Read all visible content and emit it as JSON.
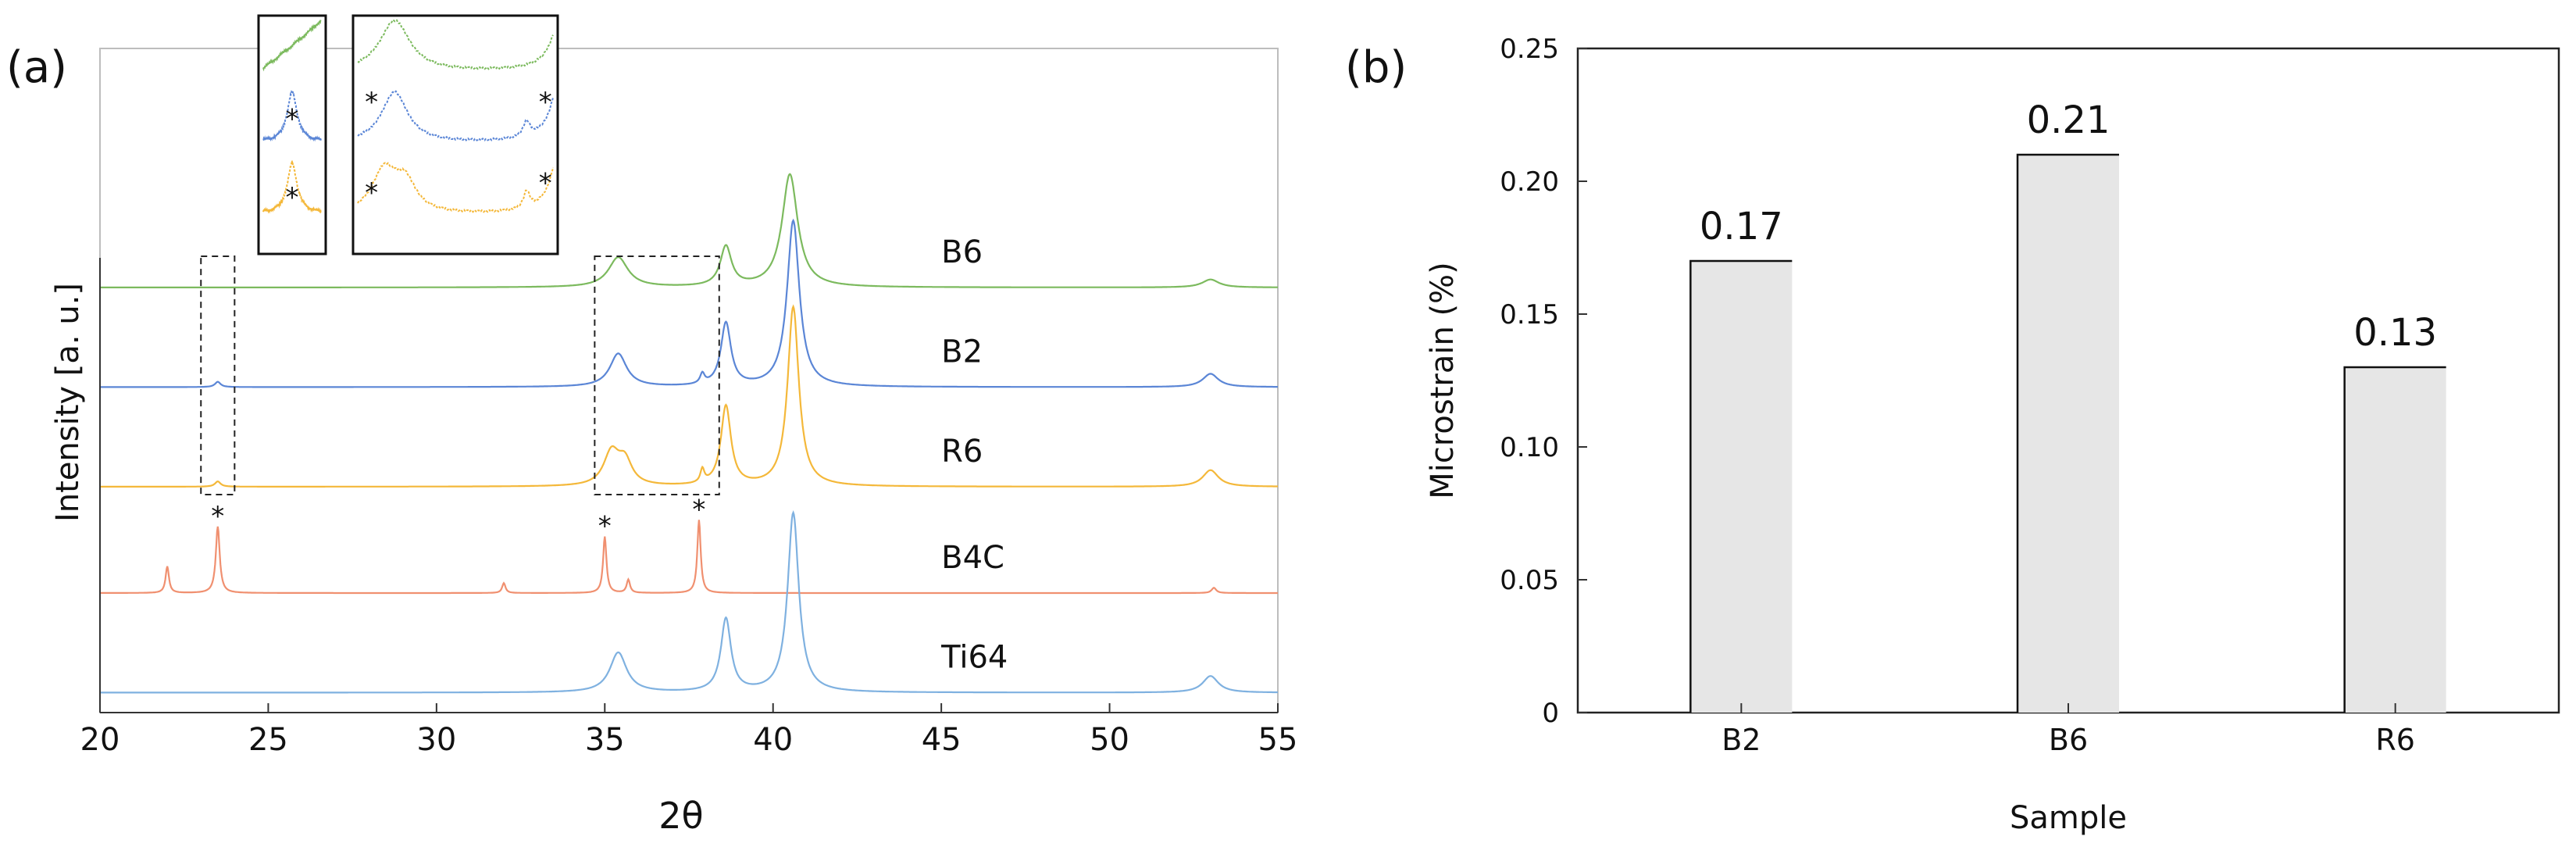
{
  "chart_data": [
    {
      "panel_label": "(a)",
      "type": "line",
      "xlabel": "2θ",
      "ylabel": "Intensity [a. u.]",
      "xlim": [
        20,
        55
      ],
      "xticks": [
        "20",
        "25",
        "30",
        "35",
        "40",
        "45",
        "50",
        "55"
      ],
      "series": [
        {
          "name": "B6",
          "color": "#7cba5e",
          "baseline": 0.64,
          "peaks": [
            {
              "x": 35.4,
              "height": 0.045,
              "width": 0.35
            },
            {
              "x": 38.6,
              "height": 0.06,
              "width": 0.2
            },
            {
              "x": 40.5,
              "height": 0.17,
              "width": 0.28
            },
            {
              "x": 53.0,
              "height": 0.012,
              "width": 0.3
            }
          ]
        },
        {
          "name": "B2",
          "color": "#5b86d6",
          "baseline": 0.49,
          "peaks": [
            {
              "x": 23.5,
              "height": 0.008,
              "width": 0.1
            },
            {
              "x": 35.4,
              "height": 0.05,
              "width": 0.3
            },
            {
              "x": 37.9,
              "height": 0.015,
              "width": 0.08
            },
            {
              "x": 38.6,
              "height": 0.095,
              "width": 0.18
            },
            {
              "x": 40.6,
              "height": 0.25,
              "width": 0.22
            },
            {
              "x": 53.0,
              "height": 0.02,
              "width": 0.28
            }
          ]
        },
        {
          "name": "R6",
          "color": "#f4b83a",
          "baseline": 0.34,
          "peaks": [
            {
              "x": 23.5,
              "height": 0.008,
              "width": 0.1
            },
            {
              "x": 35.2,
              "height": 0.05,
              "width": 0.28
            },
            {
              "x": 35.6,
              "height": 0.035,
              "width": 0.25
            },
            {
              "x": 37.9,
              "height": 0.02,
              "width": 0.07
            },
            {
              "x": 38.6,
              "height": 0.12,
              "width": 0.18
            },
            {
              "x": 40.6,
              "height": 0.27,
              "width": 0.2
            },
            {
              "x": 53.0,
              "height": 0.025,
              "width": 0.28
            }
          ]
        },
        {
          "name": "B4C",
          "color": "#f09070",
          "baseline": 0.18,
          "peaks": [
            {
              "x": 22.0,
              "height": 0.04,
              "width": 0.06
            },
            {
              "x": 23.5,
              "height": 0.1,
              "width": 0.07
            },
            {
              "x": 32.0,
              "height": 0.015,
              "width": 0.06
            },
            {
              "x": 35.0,
              "height": 0.085,
              "width": 0.06
            },
            {
              "x": 35.7,
              "height": 0.02,
              "width": 0.06
            },
            {
              "x": 37.8,
              "height": 0.11,
              "width": 0.06
            },
            {
              "x": 53.1,
              "height": 0.008,
              "width": 0.08
            }
          ]
        },
        {
          "name": "Ti64",
          "color": "#7fb1e0",
          "baseline": 0.03,
          "peaks": [
            {
              "x": 35.4,
              "height": 0.06,
              "width": 0.3
            },
            {
              "x": 38.6,
              "height": 0.11,
              "width": 0.18
            },
            {
              "x": 40.6,
              "height": 0.27,
              "width": 0.2
            },
            {
              "x": 53.0,
              "height": 0.025,
              "width": 0.28
            }
          ]
        }
      ],
      "annotations": {
        "marker": "*",
        "marked_peaks_2theta": [
          23.5,
          35.0,
          37.8
        ],
        "dashed_regions_2theta": [
          [
            23.0,
            24.0
          ],
          [
            34.7,
            38.4
          ]
        ]
      }
    },
    {
      "panel_label": "(b)",
      "type": "bar",
      "xlabel": "Sample",
      "ylabel": "Microstrain (%)",
      "categories": [
        "B2",
        "B6",
        "R6"
      ],
      "values": [
        0.17,
        0.21,
        0.13
      ],
      "value_labels": [
        "0.17",
        "0.21",
        "0.13"
      ],
      "ylim": [
        0,
        0.25
      ],
      "yticks": [
        "0",
        "0.05",
        "0.10",
        "0.15",
        "0.20",
        "0.25"
      ]
    }
  ]
}
